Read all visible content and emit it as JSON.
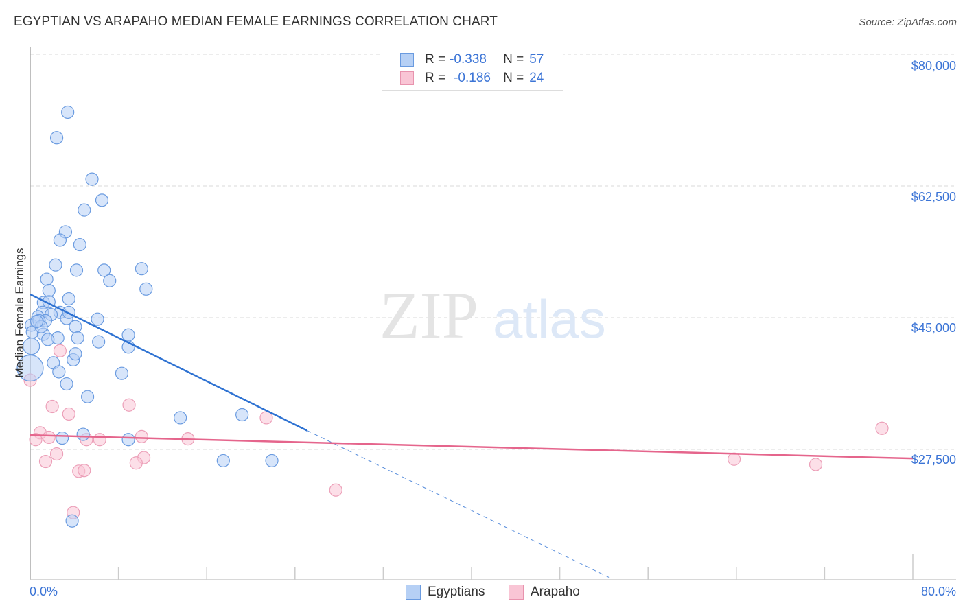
{
  "header": {
    "title": "EGYPTIAN VS ARAPAHO MEDIAN FEMALE EARNINGS CORRELATION CHART",
    "source": "Source: ZipAtlas.com"
  },
  "legend_top": {
    "rows": [
      {
        "r_label": "R =",
        "r_value": "-0.338",
        "n_label": "N =",
        "n_value": "57"
      },
      {
        "r_label": "R =",
        "r_value": "-0.186",
        "n_label": "N =",
        "n_value": "24"
      }
    ]
  },
  "legend_bottom": [
    {
      "label": "Egyptians"
    },
    {
      "label": "Arapaho"
    }
  ],
  "axes": {
    "ylabel": "Median Female Earnings",
    "yticks": [
      "$80,000",
      "$62,500",
      "$45,000",
      "$27,500"
    ],
    "xticks": [
      "0.0%",
      "80.0%"
    ]
  },
  "watermark": {
    "zip": "ZIP",
    "atlas": "atlas"
  },
  "colors": {
    "blue": "#3a78d4",
    "blue_fill": "#b6d0f5",
    "pink": "#e8698f",
    "pink_fill": "#f9c5d5",
    "tick_text": "#3b74d6"
  },
  "chart_data": {
    "type": "scatter",
    "title": "EGYPTIAN VS ARAPAHO MEDIAN FEMALE EARNINGS CORRELATION CHART",
    "xlabel": "",
    "ylabel": "Median Female Earnings",
    "xlim": [
      0,
      80
    ],
    "ylim": [
      10000,
      81000
    ],
    "x_ticks": [
      "0.0%",
      "80.0%"
    ],
    "y_ticks": [
      27500,
      45000,
      62500,
      80000
    ],
    "grid": "horizontal dashed",
    "legend_position": "top-center and bottom",
    "series": [
      {
        "name": "Egyptians",
        "color": "#3a78d4",
        "R": -0.338,
        "N": 57,
        "trend": {
          "x0": 0,
          "y0": 48100,
          "x1": 25.1,
          "y1": 30000,
          "dashed_extension_to": [
            52.6,
            10400
          ]
        },
        "points": [
          [
            3.4,
            72300
          ],
          [
            2.4,
            68900
          ],
          [
            5.6,
            63400
          ],
          [
            6.5,
            60600
          ],
          [
            4.9,
            59300
          ],
          [
            3.2,
            56400
          ],
          [
            2.7,
            55300
          ],
          [
            4.5,
            54700
          ],
          [
            2.3,
            52000
          ],
          [
            4.2,
            51300
          ],
          [
            6.7,
            51300
          ],
          [
            10.1,
            51500
          ],
          [
            1.5,
            50100
          ],
          [
            7.2,
            49900
          ],
          [
            1.7,
            48600
          ],
          [
            10.5,
            48800
          ],
          [
            1.2,
            47000
          ],
          [
            3.5,
            47500
          ],
          [
            2.7,
            45700
          ],
          [
            1.1,
            45700
          ],
          [
            1.9,
            45400
          ],
          [
            0.7,
            45100
          ],
          [
            3.3,
            44900
          ],
          [
            1.4,
            44600
          ],
          [
            4.1,
            43800
          ],
          [
            6.1,
            44800
          ],
          [
            0.1,
            44000
          ],
          [
            0.2,
            43100
          ],
          [
            1.2,
            42800
          ],
          [
            8.9,
            42700
          ],
          [
            4.3,
            42300
          ],
          [
            6.2,
            41800
          ],
          [
            8.9,
            41100
          ],
          [
            0.1,
            41200
          ],
          [
            3.9,
            39400
          ],
          [
            2.1,
            39000
          ],
          [
            2.6,
            37800
          ],
          [
            8.3,
            37600
          ],
          [
            0.0,
            38300
          ],
          [
            3.3,
            36200
          ],
          [
            5.2,
            34500
          ],
          [
            13.6,
            31700
          ],
          [
            19.2,
            32100
          ],
          [
            2.9,
            29000
          ],
          [
            4.8,
            29500
          ],
          [
            8.9,
            28800
          ],
          [
            17.5,
            26000
          ],
          [
            21.9,
            26000
          ],
          [
            3.8,
            18000
          ],
          [
            0.8,
            44600
          ],
          [
            1.7,
            47100
          ],
          [
            1.0,
            43800
          ],
          [
            0.6,
            44500
          ],
          [
            2.5,
            42300
          ],
          [
            3.5,
            45700
          ],
          [
            4.1,
            40200
          ],
          [
            1.6,
            42100
          ]
        ]
      },
      {
        "name": "Arapaho",
        "color": "#e8698f",
        "R": -0.186,
        "N": 24,
        "trend": {
          "x0": 0,
          "y0": 29400,
          "x1": 80,
          "y1": 26300
        },
        "points": [
          [
            0.0,
            36700
          ],
          [
            0.9,
            29700
          ],
          [
            0.5,
            28800
          ],
          [
            1.7,
            29100
          ],
          [
            1.4,
            25900
          ],
          [
            2.0,
            33200
          ],
          [
            2.4,
            26900
          ],
          [
            3.5,
            32200
          ],
          [
            2.7,
            40600
          ],
          [
            5.1,
            28800
          ],
          [
            6.3,
            28800
          ],
          [
            4.4,
            24600
          ],
          [
            4.9,
            24700
          ],
          [
            8.96,
            33400
          ],
          [
            10.1,
            29200
          ],
          [
            10.3,
            26400
          ],
          [
            9.6,
            25700
          ],
          [
            14.3,
            28900
          ],
          [
            21.4,
            31700
          ],
          [
            27.7,
            22100
          ],
          [
            3.9,
            19100
          ],
          [
            63.8,
            26200
          ],
          [
            71.2,
            25500
          ],
          [
            77.2,
            30300
          ]
        ]
      }
    ]
  }
}
